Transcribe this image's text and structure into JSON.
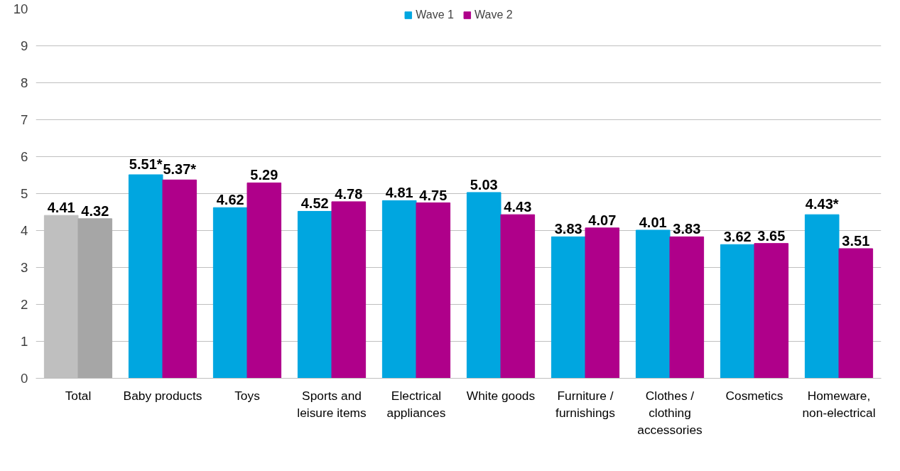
{
  "chart_data": {
    "type": "bar",
    "categories": [
      "Total",
      "Baby products",
      "Toys",
      "Sports and leisure items",
      "Electrical appliances",
      "White goods",
      "Furniture / furnishings",
      "Clothes / clothing accessories",
      "Cosmetics",
      "Homeware, non-electrical"
    ],
    "series": [
      {
        "name": "Wave 1",
        "color": "#00a6e0",
        "colors": [
          "#bfbfbf",
          null,
          null,
          null,
          null,
          null,
          null,
          null,
          null,
          null
        ],
        "values": [
          4.41,
          5.51,
          4.62,
          4.52,
          4.81,
          5.03,
          3.83,
          4.01,
          3.62,
          4.43
        ],
        "value_labels": [
          "4.41",
          "5.51*",
          "4.62",
          "4.52",
          "4.81",
          "5.03",
          "3.83",
          "4.01",
          "3.62",
          "4.43*"
        ]
      },
      {
        "name": "Wave 2",
        "color": "#af008a",
        "colors": [
          "#a6a6a6",
          null,
          null,
          null,
          null,
          null,
          null,
          null,
          null,
          null
        ],
        "values": [
          4.32,
          5.37,
          5.29,
          4.78,
          4.75,
          4.43,
          4.07,
          3.83,
          3.65,
          3.51
        ],
        "value_labels": [
          "4.32",
          "5.37*",
          "5.29",
          "4.78",
          "4.75",
          "4.43",
          "4.07",
          "3.83",
          "3.65",
          "3.51"
        ]
      }
    ],
    "ylim": [
      0,
      10
    ],
    "yticks": [
      0,
      1,
      2,
      3,
      4,
      5,
      6,
      7,
      8,
      9,
      10
    ],
    "grid": "y",
    "legend": "top"
  }
}
